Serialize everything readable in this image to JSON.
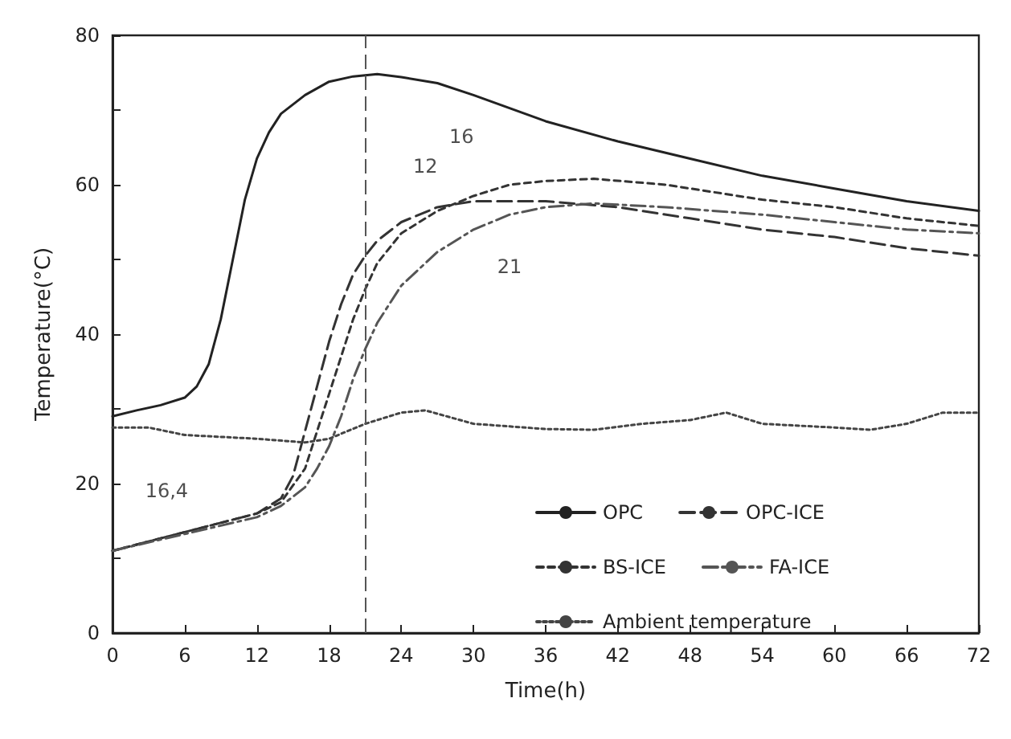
{
  "chart_data": {
    "type": "line",
    "xlabel": "Time(h)",
    "ylabel": "Temperature(°C)",
    "xlim": [
      0,
      72
    ],
    "xticks": [
      0,
      6,
      12,
      18,
      24,
      30,
      36,
      42,
      48,
      54,
      60,
      66,
      72
    ],
    "ylim": [
      0,
      80
    ],
    "yticks": [
      0,
      {
        "value": 10,
        "label": null
      },
      20,
      {
        "value": 30,
        "label": null
      },
      40,
      {
        "value": 50,
        "label": null
      },
      60,
      {
        "value": 70,
        "label": null
      },
      80
    ],
    "grid": false,
    "legend": "bottom right",
    "marker": "none",
    "series": [
      {
        "name": "OPC",
        "color": "#222222",
        "line_style": "solid",
        "x": [
          0,
          2,
          4,
          6,
          7,
          8,
          9,
          10,
          11,
          12,
          13,
          14,
          16,
          18,
          20,
          22,
          24,
          27,
          30,
          36,
          42,
          48,
          54,
          60,
          66,
          72
        ],
        "values": [
          29,
          29.8,
          30.5,
          31.5,
          33,
          36,
          42,
          50,
          58,
          63.5,
          67,
          69.5,
          72,
          73.8,
          74.5,
          74.8,
          74.4,
          73.6,
          72,
          68.5,
          65.8,
          63.5,
          61.2,
          59.5,
          57.8,
          56.5
        ]
      },
      {
        "name": "OPC-ICE",
        "color": "#333333",
        "line_style": "dashed",
        "x": [
          0,
          6,
          12,
          14,
          15,
          16,
          17,
          18,
          19,
          20,
          21,
          22,
          24,
          27,
          30,
          36,
          42,
          48,
          54,
          60,
          66,
          72
        ],
        "values": [
          11,
          13.5,
          16,
          18,
          21,
          27,
          33,
          39,
          44,
          48,
          50.5,
          52.5,
          55,
          57,
          57.8,
          57.8,
          57,
          55.5,
          54,
          53,
          51.5,
          50.5
        ]
      },
      {
        "name": "BS-ICE",
        "color": "#333333",
        "line_style": "shortdash",
        "x": [
          0,
          12,
          14,
          16,
          17,
          18,
          19,
          20,
          21,
          22,
          24,
          27,
          30,
          33,
          36,
          40,
          46,
          54,
          60,
          66,
          72
        ],
        "values": [
          11,
          16,
          17.5,
          22,
          27,
          32,
          37,
          42,
          46,
          49.5,
          53.5,
          56.5,
          58.5,
          60,
          60.5,
          60.8,
          60,
          58,
          57,
          55.5,
          54.5
        ]
      },
      {
        "name": "FA-ICE",
        "color": "#555555",
        "line_style": "dashdot",
        "x": [
          0,
          12,
          14,
          16,
          17,
          18,
          19,
          20,
          21,
          22,
          24,
          27,
          30,
          33,
          36,
          40,
          46,
          54,
          60,
          66,
          72
        ],
        "values": [
          11,
          15.5,
          17,
          19.5,
          22,
          25,
          29,
          34,
          38,
          41.5,
          46.5,
          51,
          54,
          56,
          57,
          57.5,
          57,
          56,
          55,
          54,
          53.5
        ]
      },
      {
        "name": "Ambient temperature",
        "color": "#444444",
        "line_style": "dotted",
        "x": [
          0,
          3,
          6,
          12,
          16,
          18,
          21,
          24,
          26,
          30,
          36,
          40,
          44,
          48,
          51,
          54,
          60,
          63,
          66,
          69,
          72
        ],
        "values": [
          27.5,
          27.5,
          26.5,
          26,
          25.5,
          26,
          28,
          29.5,
          29.8,
          28,
          27.3,
          27.2,
          28,
          28.5,
          29.5,
          28,
          27.5,
          27.2,
          28,
          29.5,
          29.5
        ]
      }
    ],
    "ref_lines": [
      {
        "axis": "x",
        "value": 21,
        "label": null,
        "color": "#555555",
        "line_style": "dashed"
      }
    ],
    "annotations": [
      "16",
      "12",
      "21",
      "16,4"
    ]
  }
}
